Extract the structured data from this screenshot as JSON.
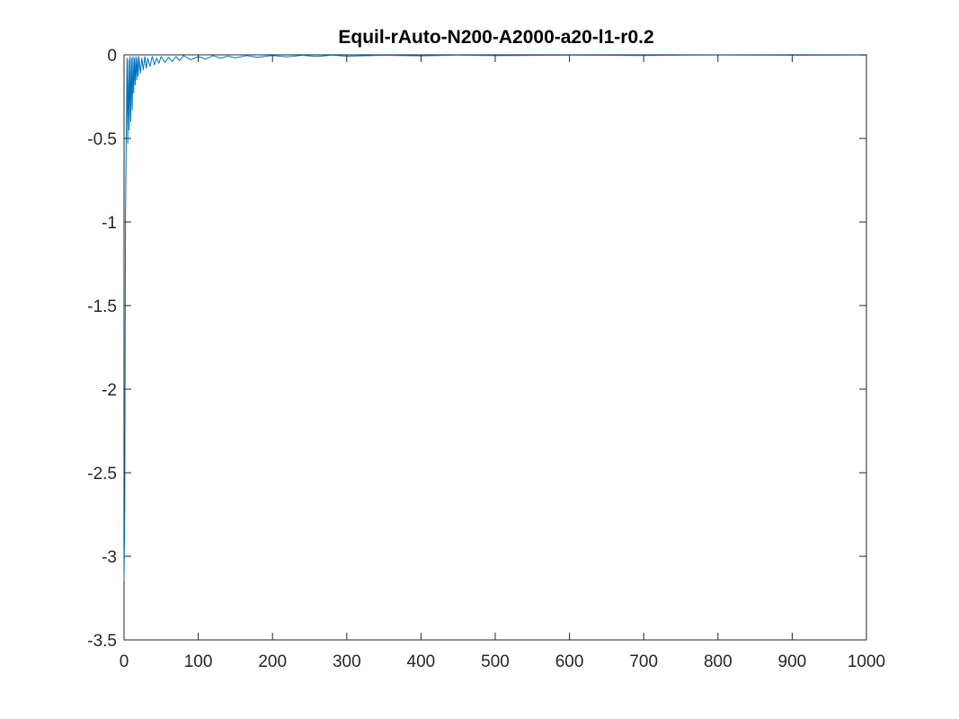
{
  "chart_data": {
    "type": "line",
    "title": "Equil-rAuto-N200-A2000-a20-l1-r0.2",
    "xlabel": "",
    "ylabel": "",
    "xlim": [
      0,
      1000
    ],
    "ylim": [
      -3.5,
      0
    ],
    "grid": false,
    "legend": "none",
    "x_ticks": [
      0,
      100,
      200,
      300,
      400,
      500,
      600,
      700,
      800,
      900,
      1000
    ],
    "x_tick_labels": [
      "0",
      "100",
      "200",
      "300",
      "400",
      "500",
      "600",
      "700",
      "800",
      "900",
      "1000"
    ],
    "y_ticks": [
      0,
      -0.5,
      -1,
      -1.5,
      -2,
      -2.5,
      -3,
      -3.5
    ],
    "y_tick_labels": [
      "0",
      "-0.5",
      "-1",
      "-1.5",
      "-2",
      "-2.5",
      "-3",
      "-3.5"
    ],
    "series": [
      {
        "color": "#0072BD",
        "x": [
          0,
          1,
          2,
          3,
          4,
          5,
          6,
          7,
          8,
          9,
          10,
          11,
          12,
          13,
          14,
          15,
          16,
          17,
          18,
          19,
          20,
          22,
          24,
          26,
          28,
          30,
          32,
          35,
          38,
          41,
          44,
          47,
          50,
          55,
          60,
          65,
          70,
          75,
          80,
          90,
          100,
          110,
          120,
          130,
          140,
          150,
          165,
          180,
          200,
          220,
          240,
          260,
          280,
          300,
          350,
          400,
          450,
          500,
          600,
          700,
          800,
          900,
          1000
        ],
        "y": [
          -3.15,
          -2.7,
          -0.95,
          -0.5,
          -0.02,
          -0.53,
          -0.03,
          -0.45,
          -0.01,
          -0.4,
          -0.02,
          -0.33,
          -0.01,
          -0.23,
          -0.02,
          -0.18,
          -0.01,
          -0.15,
          -0.02,
          -0.13,
          -0.01,
          -0.11,
          -0.02,
          -0.09,
          -0.01,
          -0.08,
          -0.02,
          -0.07,
          -0.01,
          -0.06,
          -0.02,
          -0.05,
          -0.01,
          -0.045,
          -0.015,
          -0.04,
          -0.01,
          -0.035,
          -0.005,
          -0.03,
          -0.01,
          -0.025,
          -0.005,
          -0.02,
          -0.008,
          -0.018,
          -0.005,
          -0.015,
          -0.004,
          -0.012,
          -0.003,
          -0.01,
          -0.002,
          -0.008,
          -0.003,
          -0.006,
          -0.002,
          -0.005,
          -0.002,
          -0.004,
          -0.001,
          -0.003,
          -0.001
        ]
      }
    ]
  }
}
